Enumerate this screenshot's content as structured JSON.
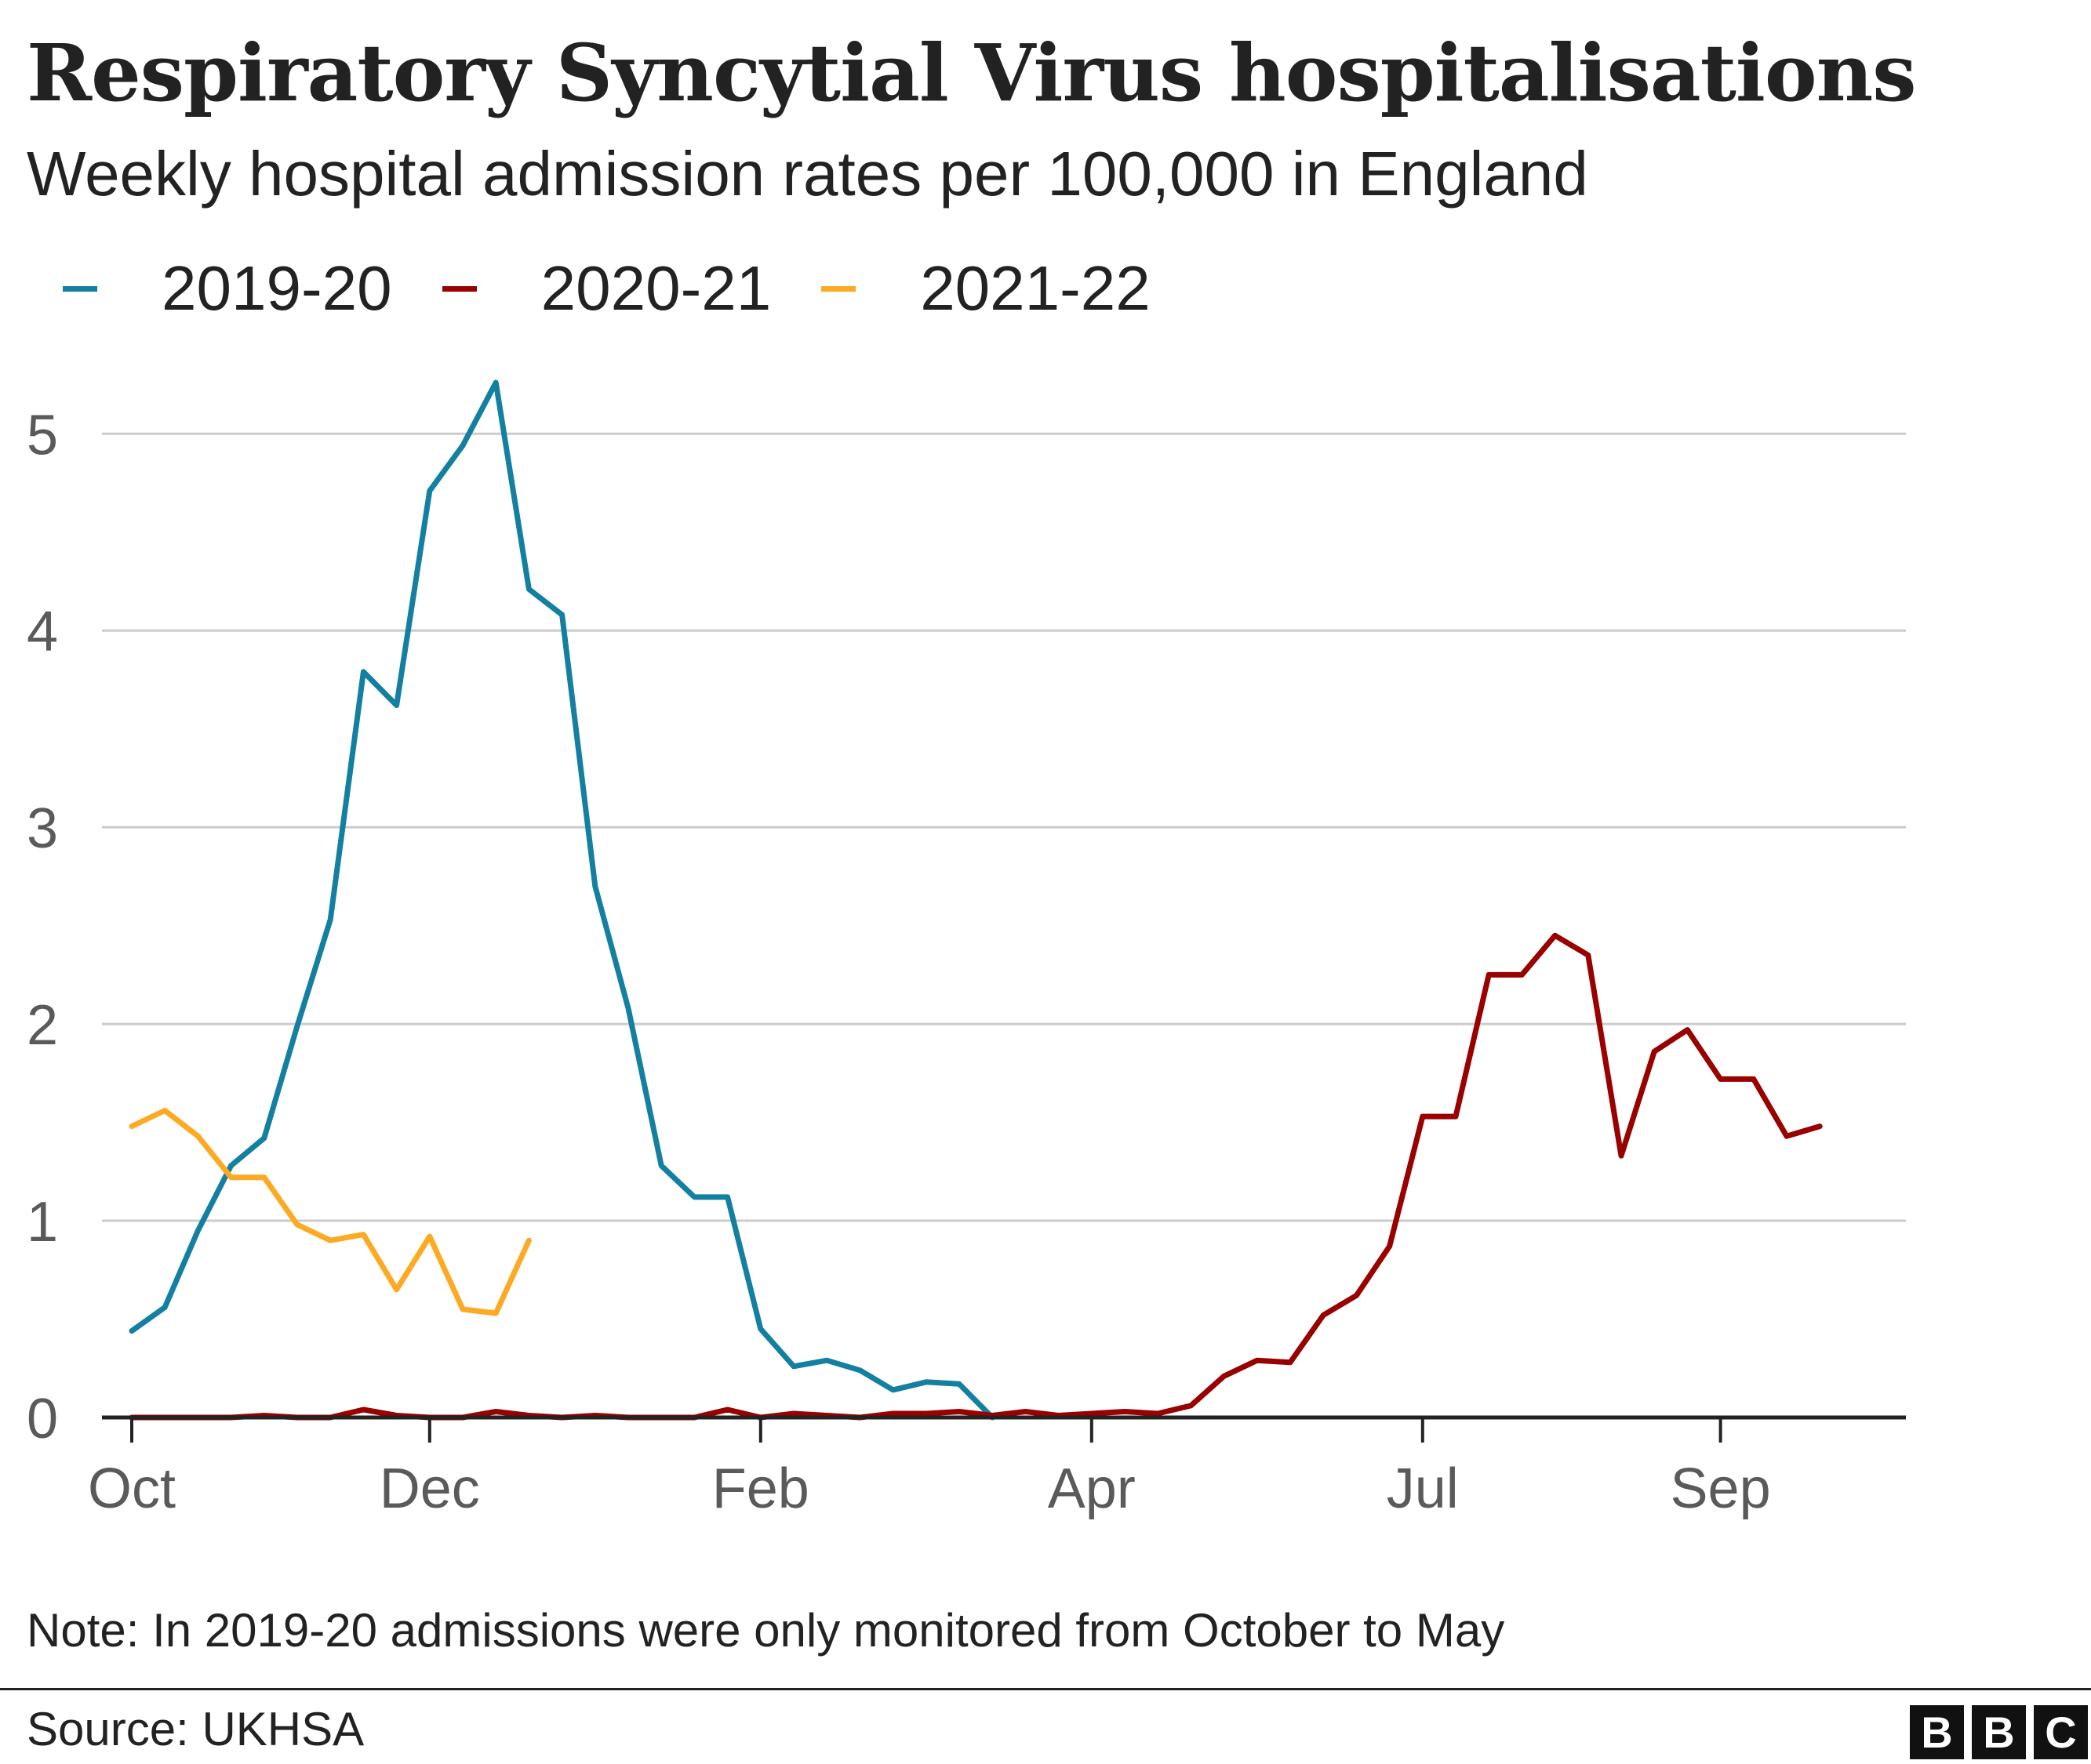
{
  "title": "Respiratory Syncytial Virus hospitalisations",
  "subtitle": "Weekly hospital admission rates per 100,000 in England",
  "legend": [
    {
      "label": "2019-20",
      "color": "#1380a1"
    },
    {
      "label": "2020-21",
      "color": "#990000"
    },
    {
      "label": "2021-22",
      "color": "#fcaa23"
    }
  ],
  "note": "Note: In 2019-20 admissions were only monitored from October to May",
  "source": "Source: UKHSA",
  "logo": [
    "B",
    "B",
    "C"
  ],
  "chart_data": {
    "type": "line",
    "title": "Respiratory Syncytial Virus hospitalisations",
    "subtitle": "Weekly hospital admission rates per 100,000 in England",
    "xlabel": "",
    "ylabel": "",
    "x_unit": "week",
    "x_tick_labels": [
      {
        "label": "Oct",
        "week": 1
      },
      {
        "label": "Dec",
        "week": 10
      },
      {
        "label": "Feb",
        "week": 20
      },
      {
        "label": "Apr",
        "week": 30
      },
      {
        "label": "Jul",
        "week": 40
      },
      {
        "label": "Sep",
        "week": 49
      }
    ],
    "x_range": [
      0,
      54
    ],
    "ylim": [
      0,
      5.3
    ],
    "y_ticks": [
      0,
      1,
      2,
      3,
      4,
      5
    ],
    "grid": true,
    "legend_position": "top-left",
    "series": [
      {
        "name": "2019-20",
        "color": "#1380a1",
        "start_week": 1,
        "values": [
          0.44,
          0.56,
          0.95,
          1.28,
          1.42,
          1.99,
          2.53,
          3.79,
          3.62,
          4.71,
          4.94,
          5.26,
          4.21,
          4.08,
          2.7,
          2.08,
          1.28,
          1.12,
          1.12,
          0.45,
          0.26,
          0.29,
          0.24,
          0.14,
          0.18,
          0.17,
          0.0
        ]
      },
      {
        "name": "2020-21",
        "color": "#990000",
        "start_week": 1,
        "values": [
          0.0,
          0.0,
          0.0,
          0.0,
          0.01,
          0.0,
          0.0,
          0.04,
          0.01,
          0.0,
          0.0,
          0.03,
          0.01,
          0.0,
          0.01,
          0.0,
          0.0,
          0.0,
          0.04,
          0.0,
          0.02,
          0.01,
          0.0,
          0.02,
          0.02,
          0.03,
          0.01,
          0.03,
          0.01,
          0.02,
          0.03,
          0.02,
          0.06,
          0.21,
          0.29,
          0.28,
          0.52,
          0.62,
          0.87,
          1.53,
          1.53,
          2.25,
          2.25,
          2.45,
          2.35,
          1.33,
          1.86,
          1.97,
          1.72,
          1.72,
          1.43,
          1.48
        ]
      },
      {
        "name": "2021-22",
        "color": "#fcaa23",
        "start_week": 1,
        "values": [
          1.48,
          1.56,
          1.43,
          1.22,
          1.22,
          0.98,
          0.9,
          0.93,
          0.65,
          0.92,
          0.55,
          0.53,
          0.9
        ]
      }
    ]
  }
}
